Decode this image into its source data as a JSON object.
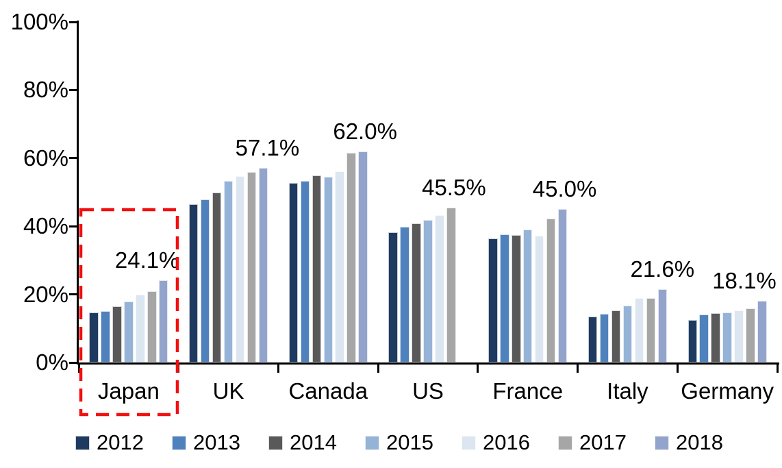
{
  "chart_data": {
    "type": "bar",
    "title": "",
    "xlabel": "",
    "ylabel": "",
    "categories": [
      "Japan",
      "UK",
      "Canada",
      "US",
      "France",
      "Italy",
      "Germany"
    ],
    "legend": [
      "2012",
      "2013",
      "2014",
      "2015",
      "2016",
      "2017",
      "2018"
    ],
    "series": [
      {
        "name": "2012",
        "color": "#1F3A60",
        "values": [
          14.7,
          46.4,
          52.8,
          38.2,
          36.4,
          13.4,
          12.5
        ]
      },
      {
        "name": "2013",
        "color": "#4F81BD",
        "values": [
          15.0,
          47.9,
          53.4,
          39.9,
          37.6,
          14.2,
          14.0
        ]
      },
      {
        "name": "2014",
        "color": "#595959",
        "values": [
          16.5,
          49.9,
          54.9,
          40.8,
          37.4,
          15.3,
          14.4
        ]
      },
      {
        "name": "2015",
        "color": "#95B3D7",
        "values": [
          18.0,
          53.3,
          54.5,
          41.9,
          39.1,
          16.7,
          14.7
        ]
      },
      {
        "name": "2016",
        "color": "#DCE6F1",
        "values": [
          20.0,
          54.7,
          56.2,
          43.3,
          37.2,
          18.9,
          15.3
        ]
      },
      {
        "name": "2017",
        "color": "#A6A6A6",
        "values": [
          20.9,
          55.9,
          61.6,
          45.5,
          42.2,
          19.0,
          15.8
        ]
      },
      {
        "name": "2018",
        "color": "#93A4CC",
        "values": [
          24.1,
          57.1,
          62.0,
          null,
          45.0,
          21.6,
          18.1
        ]
      }
    ],
    "data_labels": [
      "24.1%",
      "57.1%",
      "62.0%",
      "45.5%",
      "45.0%",
      "21.6%",
      "18.1%"
    ],
    "y_axis": {
      "ticks": [
        "0%",
        "20%",
        "40%",
        "60%",
        "80%",
        "100%"
      ],
      "min": 0,
      "max": 100,
      "unit": "%"
    },
    "grid": false,
    "legend_position": "bottom",
    "highlight": {
      "category": "Japan",
      "type": "red-dashed-rectangle",
      "color": "#F20F0F"
    }
  }
}
